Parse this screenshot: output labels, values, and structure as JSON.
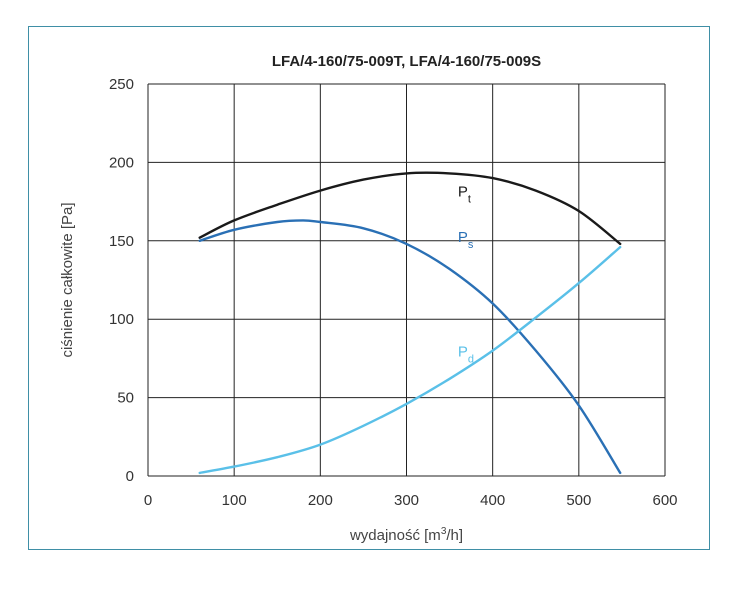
{
  "chart_data": {
    "type": "line",
    "title": "LFA/4-160/75-009T, LFA/4-160/75-009S",
    "xlabel_main": "wydajność [m",
    "xlabel_sup": "3",
    "xlabel_tail": "/h]",
    "ylabel": "ciśnienie całkowite [Pa]",
    "xlim": [
      0,
      600
    ],
    "ylim": [
      0,
      250
    ],
    "x_ticks": [
      "0",
      "100",
      "200",
      "300",
      "400",
      "500",
      "600"
    ],
    "y_ticks": [
      "0",
      "50",
      "100",
      "150",
      "200",
      "250"
    ],
    "grid": true,
    "series": [
      {
        "label_main": "P",
        "label_sub": "t",
        "color": "#1a1a1a",
        "x": [
          60,
          100,
          150,
          200,
          250,
          300,
          350,
          400,
          450,
          500,
          548
        ],
        "y": [
          152,
          163,
          173,
          182,
          189,
          193,
          193,
          190,
          182,
          169,
          148
        ]
      },
      {
        "label_main": "P",
        "label_sub": "s",
        "color": "#2a70b5",
        "x": [
          60,
          100,
          150,
          180,
          200,
          250,
          300,
          350,
          400,
          450,
          500,
          548
        ],
        "y": [
          150,
          157,
          162,
          163,
          162,
          158,
          148,
          132,
          110,
          80,
          45,
          2
        ]
      },
      {
        "label_main": "P",
        "label_sub": "d",
        "color": "#5ac0e8",
        "x": [
          60,
          100,
          150,
          200,
          250,
          300,
          350,
          400,
          450,
          500,
          548
        ],
        "y": [
          2,
          6,
          12,
          20,
          32,
          46,
          62,
          80,
          101,
          123,
          146
        ]
      }
    ]
  }
}
